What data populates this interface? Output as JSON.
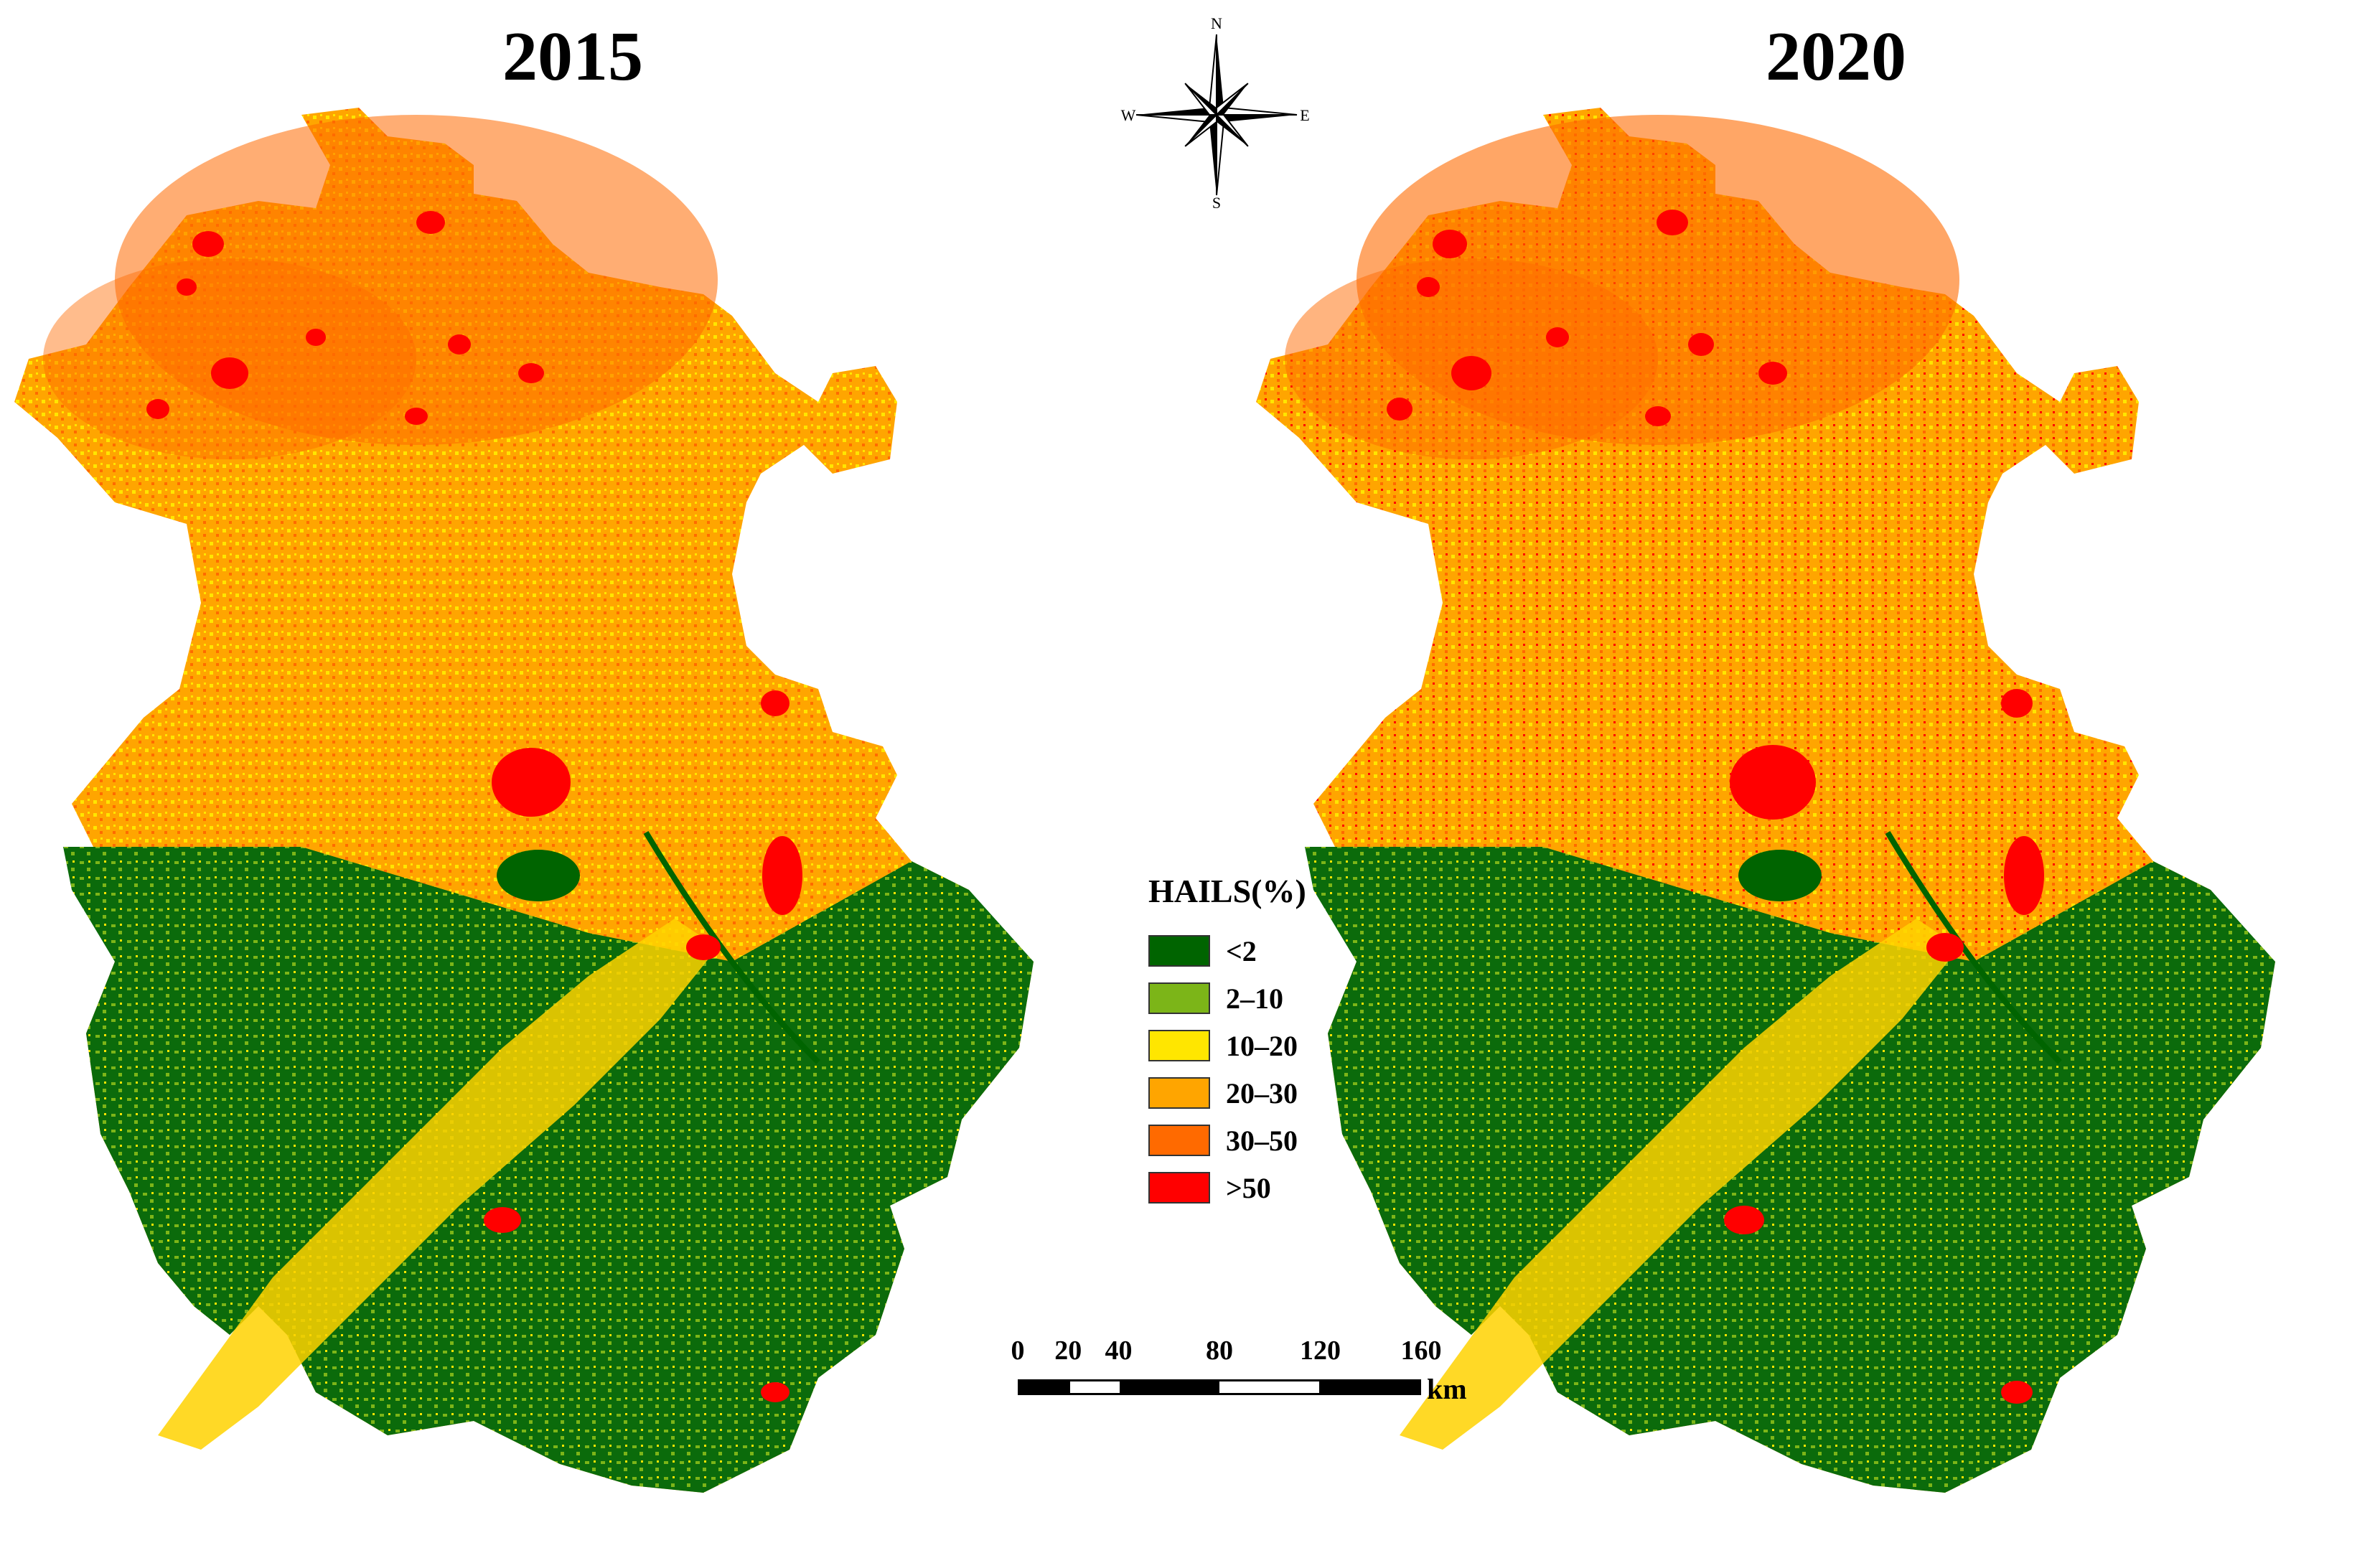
{
  "titles": {
    "left": "2015",
    "right": "2020"
  },
  "compass": {
    "north": "N",
    "south": "S",
    "east": "E",
    "west": "W"
  },
  "legend": {
    "title": "HAILS(%)",
    "classes": [
      {
        "label": "<2",
        "color": "#006400"
      },
      {
        "label": "2–10",
        "color": "#7CB518"
      },
      {
        "label": "10–20",
        "color": "#FFE600"
      },
      {
        "label": "20–30",
        "color": "#FFA500"
      },
      {
        "label": "30–50",
        "color": "#FF6A00"
      },
      {
        "label": ">50",
        "color": "#FF0000"
      }
    ]
  },
  "scale_bar": {
    "ticks": [
      "0",
      "20",
      "40",
      "80",
      "120",
      "160"
    ],
    "tick_values": [
      0,
      20,
      40,
      80,
      120,
      160
    ],
    "unit": "km"
  }
}
